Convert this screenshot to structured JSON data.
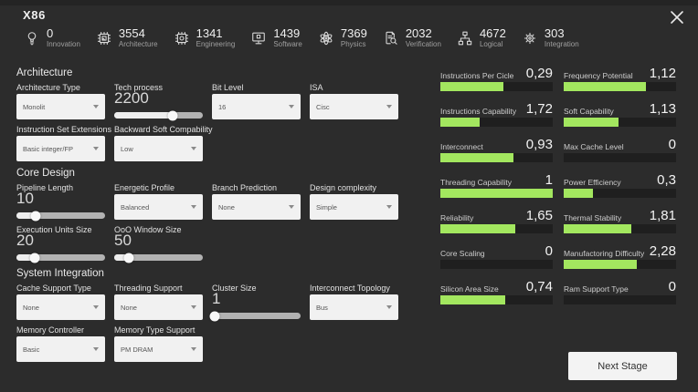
{
  "window": {
    "title": "X86"
  },
  "resources": [
    {
      "icon": "lightbulb-icon",
      "value": "0",
      "label": "Innovation"
    },
    {
      "icon": "chip-image-icon",
      "value": "3554",
      "label": "Architecture"
    },
    {
      "icon": "chip-icon",
      "value": "1341",
      "label": "Engineering"
    },
    {
      "icon": "monitor-chip-icon",
      "value": "1439",
      "label": "Software"
    },
    {
      "icon": "atom-icon",
      "value": "7369",
      "label": "Physics"
    },
    {
      "icon": "document-magnifier-icon",
      "value": "2032",
      "label": "Verification"
    },
    {
      "icon": "flowchart-icon",
      "value": "4672",
      "label": "Logical"
    },
    {
      "icon": "gear-icon",
      "value": "303",
      "label": "Integration"
    }
  ],
  "form": {
    "sections": [
      {
        "title": "Architecture",
        "rows": [
          [
            {
              "label": "Architecture Type",
              "type": "select",
              "value": "Monolit"
            },
            {
              "label": "Tech process",
              "type": "slider",
              "value": "2200",
              "fill": 66
            },
            {
              "label": "Bit Level",
              "type": "select",
              "value": "16"
            },
            {
              "label": "ISA",
              "type": "select",
              "value": "Cisc"
            }
          ],
          [
            {
              "label": "Instruction Set Extensions",
              "type": "select",
              "value": "Basic integer/FP"
            },
            {
              "label": "Backward Soft Compability",
              "type": "select",
              "value": "Low"
            }
          ]
        ]
      },
      {
        "title": "Core Design",
        "rows": [
          [
            {
              "label": "Pipeline Length",
              "type": "slider",
              "value": "10",
              "fill": 22
            },
            {
              "label": "Energetic Profile",
              "type": "select",
              "value": "Balanced"
            },
            {
              "label": "Branch Prediction",
              "type": "select",
              "value": "None"
            },
            {
              "label": "Design complexity",
              "type": "select",
              "value": "Simple"
            }
          ],
          [
            {
              "label": "Execution Units Size",
              "type": "slider",
              "value": "20",
              "fill": 21
            },
            {
              "label": "OoO Window Size",
              "type": "slider",
              "value": "50",
              "fill": 16
            }
          ]
        ]
      },
      {
        "title": "System Integration",
        "rows": [
          [
            {
              "label": "Cache Support Type",
              "type": "select",
              "value": "None"
            },
            {
              "label": "Threading Support",
              "type": "select",
              "value": "None"
            },
            {
              "label": "Cluster Size",
              "type": "slider",
              "value": "1",
              "fill": 3
            },
            {
              "label": "Interconnect Topology",
              "type": "select",
              "value": "Bus"
            }
          ],
          [
            {
              "label": "Memory Controller",
              "type": "select",
              "value": "Basic"
            },
            {
              "label": "Memory Type Support",
              "type": "select",
              "value": "PM DRAM"
            }
          ]
        ]
      }
    ]
  },
  "stats": {
    "items": [
      {
        "label": "Instructions Per Cicle",
        "value": "0,29",
        "fill": 56
      },
      {
        "label": "Frequency Potential",
        "value": "1,12",
        "fill": 73
      },
      {
        "label": "Instructions Capability",
        "value": "1,72",
        "fill": 35
      },
      {
        "label": "Soft Capability",
        "value": "1,13",
        "fill": 49
      },
      {
        "label": "Interconnect",
        "value": "0,93",
        "fill": 65
      },
      {
        "label": "Max Cache Level",
        "value": "0",
        "fill": 0
      },
      {
        "label": "Threading Capability",
        "value": "1",
        "fill": 100
      },
      {
        "label": "Power Efficiency",
        "value": "0,3",
        "fill": 26
      },
      {
        "label": "Reliability",
        "value": "1,65",
        "fill": 67
      },
      {
        "label": "Thermal Stability",
        "value": "1,81",
        "fill": 60
      },
      {
        "label": "Core Scaling",
        "value": "0",
        "fill": 0
      },
      {
        "label": "Manufactoring Difficulty",
        "value": "2,28",
        "fill": 65
      },
      {
        "label": "Silicon Area Size",
        "value": "0,74",
        "fill": 58
      },
      {
        "label": "Ram Support Type",
        "value": "0",
        "fill": 0
      }
    ]
  },
  "footer": {
    "next_stage_label": "Next Stage"
  },
  "colors": {
    "background": "#2c2c2c",
    "stat_bar_fill": "#a3e75f",
    "stat_bar_track": "#1f1f1f"
  }
}
